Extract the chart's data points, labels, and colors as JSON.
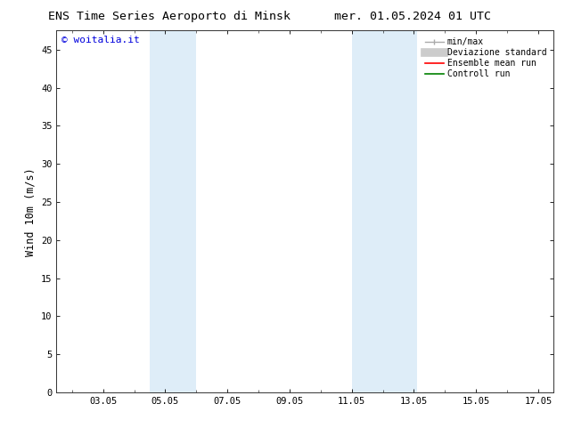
{
  "title_left": "ENS Time Series Aeroporto di Minsk",
  "title_right": "mer. 01.05.2024 01 UTC",
  "ylabel": "Wind 10m (m/s)",
  "watermark": "© woitalia.it",
  "watermark_color": "#0000dd",
  "xlim_start": 1.5,
  "xlim_end": 17.5,
  "ylim_bottom": 0,
  "ylim_top": 47.5,
  "yticks": [
    0,
    5,
    10,
    15,
    20,
    25,
    30,
    35,
    40,
    45
  ],
  "xtick_labels": [
    "03.05",
    "05.05",
    "07.05",
    "09.05",
    "11.05",
    "13.05",
    "15.05",
    "17.05"
  ],
  "xtick_positions": [
    3,
    5,
    7,
    9,
    11,
    13,
    15,
    17
  ],
  "background_color": "#ffffff",
  "plot_bg_color": "#ffffff",
  "shaded_regions": [
    {
      "xmin": 4.5,
      "xmax": 6.0,
      "color": "#deedf8"
    },
    {
      "xmin": 11.0,
      "xmax": 13.1,
      "color": "#deedf8"
    }
  ],
  "legend_entries": [
    {
      "label": "min/max",
      "color": "#aaaaaa",
      "lw": 1.0,
      "style": "line_with_caps"
    },
    {
      "label": "Deviazione standard",
      "color": "#cccccc",
      "lw": 7,
      "style": "thick"
    },
    {
      "label": "Ensemble mean run",
      "color": "#ff0000",
      "lw": 1.2,
      "style": "line"
    },
    {
      "label": "Controll run",
      "color": "#008000",
      "lw": 1.2,
      "style": "line"
    }
  ],
  "font_family": "DejaVu Sans Mono",
  "title_fontsize": 9.5,
  "tick_fontsize": 7.5,
  "ylabel_fontsize": 8.5,
  "legend_fontsize": 7,
  "watermark_fontsize": 8
}
